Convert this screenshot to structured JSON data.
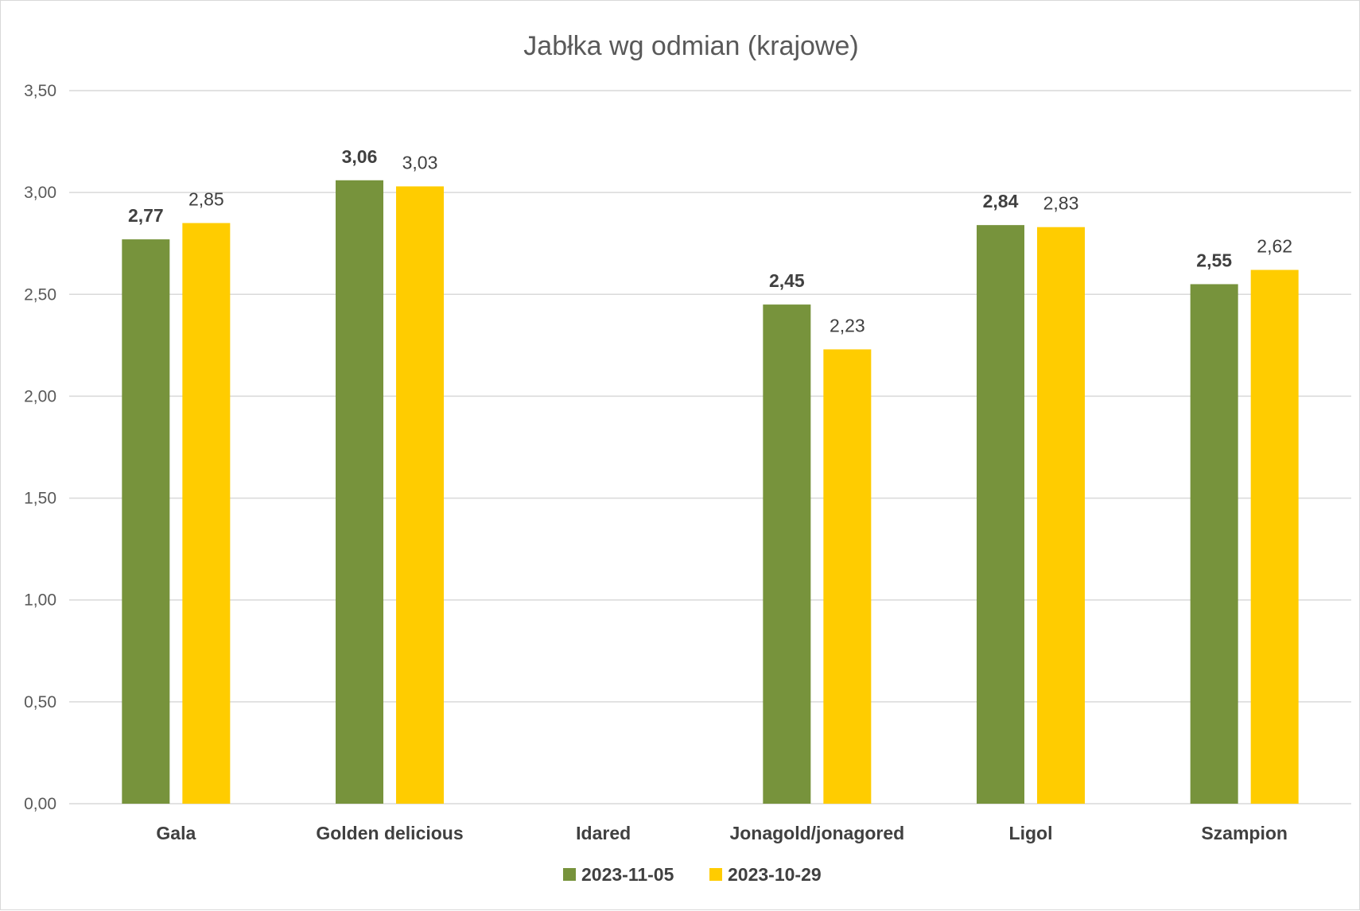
{
  "chart_data": {
    "type": "bar",
    "title": "Jabłka wg odmian (krajowe)",
    "xlabel": "",
    "ylabel": "",
    "categories": [
      "Gala",
      "Golden delicious",
      "Idared",
      "Jonagold/jonagored",
      "Ligol",
      "Szampion"
    ],
    "series": [
      {
        "name": "2023-11-05",
        "color": "#77933c",
        "values": [
          2.77,
          3.06,
          null,
          2.45,
          2.84,
          2.55
        ],
        "labels": [
          "2,77",
          "3,06",
          "",
          "2,45",
          "2,84",
          "2,55"
        ]
      },
      {
        "name": "2023-10-29",
        "color": "#ffcc00",
        "values": [
          2.85,
          3.03,
          null,
          2.23,
          2.83,
          2.62
        ],
        "labels": [
          "2,85",
          "3,03",
          "",
          "2,23",
          "2,83",
          "2,62"
        ]
      }
    ],
    "ylim": [
      0,
      3.5
    ],
    "yticks": [
      0,
      0.5,
      1,
      1.5,
      2,
      2.5,
      3,
      3.5
    ],
    "ytick_labels": [
      "0,00",
      "0,50",
      "1,00",
      "1,50",
      "2,00",
      "2,50",
      "3,00",
      "3,50"
    ],
    "grid": true,
    "gridline_color": "#d9d9d9",
    "legend_position": "bottom"
  }
}
